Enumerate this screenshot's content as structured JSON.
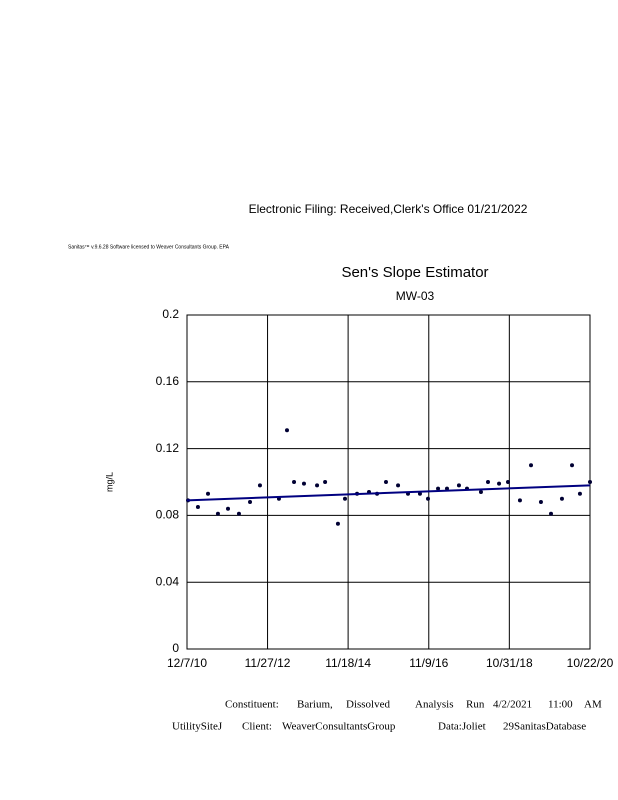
{
  "header": "Electronic Filing: Received,Clerk's Office 01/21/2022",
  "license": "Sanitas™ v.9.6.28 Software licensed to Weaver Consultants Group. EPA",
  "chart_data": {
    "type": "scatter",
    "title": "Sen's Slope Estimator",
    "subtitle": "MW-03",
    "y_label": "mg/L",
    "grid": true,
    "ylim": [
      0,
      0.2
    ],
    "yticks": [
      0,
      0.04,
      0.08,
      0.12,
      0.16,
      0.2
    ],
    "xlim": [
      "2010-12-07",
      "2020-10-22"
    ],
    "xticks": [
      {
        "value": "2010-12-07",
        "label": "12/7/10"
      },
      {
        "value": "2012-11-27",
        "label": "11/27/12"
      },
      {
        "value": "2014-11-18",
        "label": "11/18/14"
      },
      {
        "value": "2016-11-09",
        "label": "11/9/16"
      },
      {
        "value": "2018-10-31",
        "label": "10/31/18"
      },
      {
        "value": "2020-10-22",
        "label": "10/22/20"
      }
    ],
    "series": [
      {
        "color": "#000033",
        "x": [
          "2010-12-16",
          "2011-03-15",
          "2011-06-13",
          "2011-09-10",
          "2011-12-09",
          "2012-03-16",
          "2012-06-23",
          "2012-09-20",
          "2013-03-09",
          "2013-05-20",
          "2013-07-22",
          "2013-10-19",
          "2014-02-13",
          "2014-04-26",
          "2014-08-19",
          "2014-10-21",
          "2015-02-06",
          "2015-05-24",
          "2015-08-04",
          "2015-10-23",
          "2016-02-08",
          "2016-05-07",
          "2016-08-22",
          "2016-11-02",
          "2017-01-31",
          "2017-04-21",
          "2017-08-06",
          "2017-10-17",
          "2018-02-19",
          "2018-04-23",
          "2018-07-31",
          "2018-10-19",
          "2019-02-03",
          "2019-05-13",
          "2019-08-10",
          "2019-11-08",
          "2020-02-14",
          "2020-05-14",
          "2020-07-24",
          "2020-10-22"
        ],
        "values": [
          0.089,
          0.085,
          0.093,
          0.081,
          0.084,
          0.081,
          0.088,
          0.098,
          0.09,
          0.131,
          0.1,
          0.099,
          0.098,
          0.1,
          0.075,
          0.09,
          0.093,
          0.094,
          0.093,
          0.1,
          0.098,
          0.093,
          0.093,
          0.09,
          0.096,
          0.096,
          0.098,
          0.096,
          0.094,
          0.1,
          0.099,
          0.1,
          0.089,
          0.11,
          0.088,
          0.081,
          0.09,
          0.11,
          0.093,
          0.1
        ]
      }
    ],
    "trend_line": {
      "color": "#000080",
      "x": [
        "2010-12-07",
        "2020-10-22"
      ],
      "values": [
        0.089,
        0.098
      ]
    }
  },
  "footer": {
    "line1": [
      "Constituent:",
      "Barium,",
      "Dissolved",
      "Analysis",
      "Run",
      "4/2/2021",
      "11:00",
      "AM"
    ],
    "line2": [
      "UtilitySiteJ",
      "Client:",
      "WeaverConsultantsGroup",
      "Data:Joliet",
      "29SanitasDatabase"
    ]
  }
}
